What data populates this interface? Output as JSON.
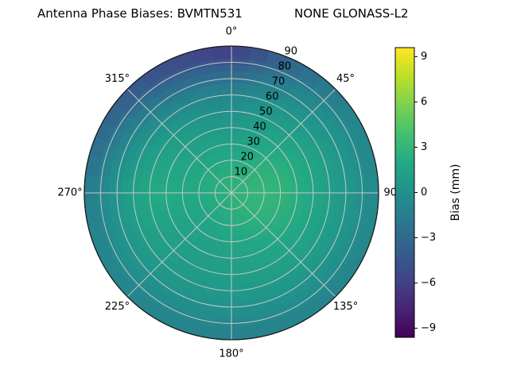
{
  "background": "#ffffff",
  "chart_data": {
    "type": "heatmap",
    "projection": "polar",
    "title_left": "Antenna Phase Biases: BVMTN531",
    "title_right": "NONE GLONASS-L2",
    "angular_ticks": [
      {
        "deg": 0,
        "label": "0°"
      },
      {
        "deg": 45,
        "label": "45°"
      },
      {
        "deg": 90,
        "label": "90°"
      },
      {
        "deg": 135,
        "label": "135°"
      },
      {
        "deg": 180,
        "label": "180°"
      },
      {
        "deg": 225,
        "label": "225°"
      },
      {
        "deg": 270,
        "label": "270°"
      },
      {
        "deg": 315,
        "label": "315°"
      }
    ],
    "radial_ticks": [
      {
        "zenith": 10,
        "label": "10"
      },
      {
        "zenith": 20,
        "label": "20"
      },
      {
        "zenith": 30,
        "label": "30"
      },
      {
        "zenith": 40,
        "label": "40"
      },
      {
        "zenith": 50,
        "label": "50"
      },
      {
        "zenith": 60,
        "label": "60"
      },
      {
        "zenith": 70,
        "label": "70"
      },
      {
        "zenith": 80,
        "label": "80"
      },
      {
        "zenith": 90,
        "label": "90"
      }
    ],
    "radial_tick_angle_deg": 22.5,
    "azimuth_deg": [
      0,
      30,
      60,
      90,
      120,
      150,
      180,
      210,
      240,
      270,
      300,
      330
    ],
    "zenith_deg": [
      5,
      15,
      25,
      35,
      45,
      55,
      65,
      75,
      85
    ],
    "values_mm": [
      [
        2.6,
        2.6,
        2.7,
        2.8,
        2.8,
        2.7,
        2.6,
        2.5,
        2.5,
        2.5,
        2.5,
        2.6
      ],
      [
        2.3,
        2.5,
        2.8,
        3.0,
        2.9,
        2.6,
        2.3,
        2.1,
        2.1,
        2.2,
        2.2,
        2.2
      ],
      [
        1.7,
        2.2,
        2.7,
        3.0,
        2.8,
        2.3,
        1.9,
        1.6,
        1.7,
        2.0,
        1.9,
        1.7
      ],
      [
        1.0,
        1.7,
        2.4,
        2.7,
        2.4,
        1.9,
        1.5,
        1.2,
        1.5,
        2.1,
        1.7,
        1.2
      ],
      [
        0.4,
        1.2,
        1.9,
        2.1,
        1.9,
        1.5,
        1.2,
        1.0,
        1.4,
        2.2,
        1.5,
        0.7
      ],
      [
        -0.4,
        0.6,
        1.3,
        1.5,
        1.4,
        1.1,
        0.9,
        0.8,
        1.2,
        1.7,
        0.9,
        -0.1
      ],
      [
        -1.6,
        -0.2,
        0.7,
        0.9,
        0.8,
        0.6,
        0.4,
        0.4,
        0.7,
        0.9,
        0.0,
        -1.2
      ],
      [
        -3.4,
        -1.2,
        0.0,
        0.3,
        0.1,
        -0.1,
        -0.3,
        -0.2,
        0.0,
        -0.1,
        -1.3,
        -2.9
      ],
      [
        -6.0,
        -2.6,
        -0.8,
        -0.5,
        -0.8,
        -1.0,
        -1.2,
        -0.9,
        -0.8,
        -1.4,
        -3.2,
        -4.8
      ]
    ],
    "colorbar": {
      "label": "Bias (mm)",
      "vmin": -9.6,
      "vmax": 9.6,
      "ticks": [
        {
          "value": 9,
          "label": "9"
        },
        {
          "value": 6,
          "label": "6"
        },
        {
          "value": 3,
          "label": "3"
        },
        {
          "value": 0,
          "label": "0"
        },
        {
          "value": -3,
          "label": "−3"
        },
        {
          "value": -6,
          "label": "−6"
        },
        {
          "value": -9,
          "label": "−9"
        }
      ],
      "colormap": "viridis",
      "stops": [
        {
          "t": 0.0,
          "c": "#440154"
        },
        {
          "t": 0.1,
          "c": "#482475"
        },
        {
          "t": 0.2,
          "c": "#414487"
        },
        {
          "t": 0.3,
          "c": "#355f8d"
        },
        {
          "t": 0.4,
          "c": "#2a788e"
        },
        {
          "t": 0.5,
          "c": "#21918c"
        },
        {
          "t": 0.6,
          "c": "#22a884"
        },
        {
          "t": 0.7,
          "c": "#44bf70"
        },
        {
          "t": 0.8,
          "c": "#7ad151"
        },
        {
          "t": 0.9,
          "c": "#bddf26"
        },
        {
          "t": 1.0,
          "c": "#fde725"
        }
      ]
    },
    "grid_color": "#c8c8c8",
    "outline_color": "#1a1a1a"
  }
}
